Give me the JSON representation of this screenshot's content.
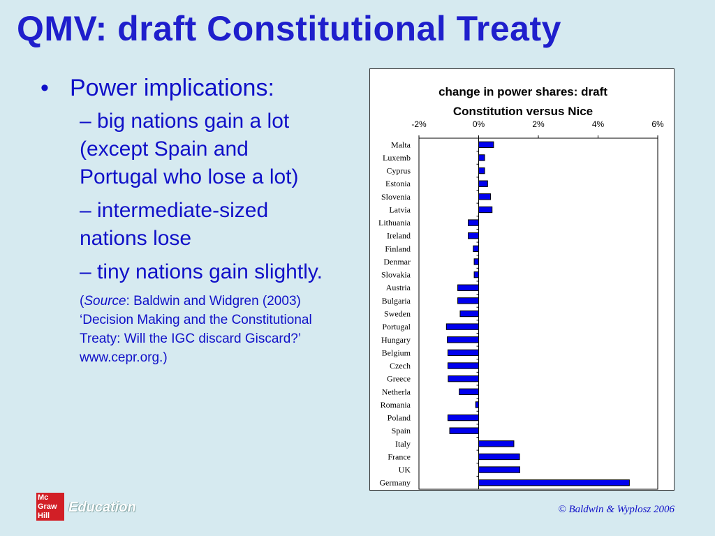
{
  "slide": {
    "title": "QMV: draft Constitutional Treaty",
    "bullet": "Power implications:",
    "bullet_marker": "•",
    "subpoints": [
      "– big nations gain a lot (except Spain and Portugal who lose a lot)",
      "– intermediate-sized nations lose",
      "– tiny nations gain slightly."
    ],
    "source_open": "(",
    "source_label": "Source",
    "source_text": ": Baldwin and Widgren (2003) ‘Decision Making and the Constitutional Treaty: Will the IGC discard Giscard?’ www.cepr.org.)",
    "copyright": "© Baldwin & Wyplosz 2006",
    "logo_lines": [
      "Mc",
      "Graw",
      "Hill"
    ],
    "logo_text": "Education"
  },
  "colors": {
    "title": "#1f1fcc",
    "text": "#1010c8",
    "bar": "#0000ee",
    "background": "#d6eaf0"
  },
  "chart_data": {
    "type": "bar",
    "orientation": "horizontal",
    "title_lines": [
      "change in power shares: draft",
      "Constitution versus Nice"
    ],
    "xlim": [
      -0.02,
      0.06
    ],
    "xticks": [
      -0.02,
      0,
      0.02,
      0.04,
      0.06
    ],
    "xtick_labels": [
      "-2%",
      "0%",
      "2%",
      "4%",
      "6%"
    ],
    "axis_position": "top",
    "grid": false,
    "categories": [
      "Malta",
      "Luxemb",
      "Cyprus",
      "Estonia",
      "Slovenia",
      "Latvia",
      "Lithuania",
      "Ireland",
      "Finland",
      "Denmar",
      "Slovakia",
      "Austria",
      "Bulgaria",
      "Sweden",
      "Portugal",
      "Hungary",
      "Belgium",
      "Czech",
      "Greece",
      "Netherla",
      "Romania",
      "Poland",
      "Spain",
      "Italy",
      "France",
      "UK",
      "Germany"
    ],
    "values": [
      0.005,
      0.002,
      0.002,
      0.003,
      0.004,
      0.0045,
      -0.0035,
      -0.0035,
      -0.0018,
      -0.0015,
      -0.0015,
      -0.007,
      -0.007,
      -0.0062,
      -0.0108,
      -0.0105,
      -0.0103,
      -0.0103,
      -0.0102,
      -0.0065,
      -0.001,
      -0.0103,
      -0.0097,
      0.0118,
      0.0137,
      0.0138,
      0.0505
    ]
  }
}
